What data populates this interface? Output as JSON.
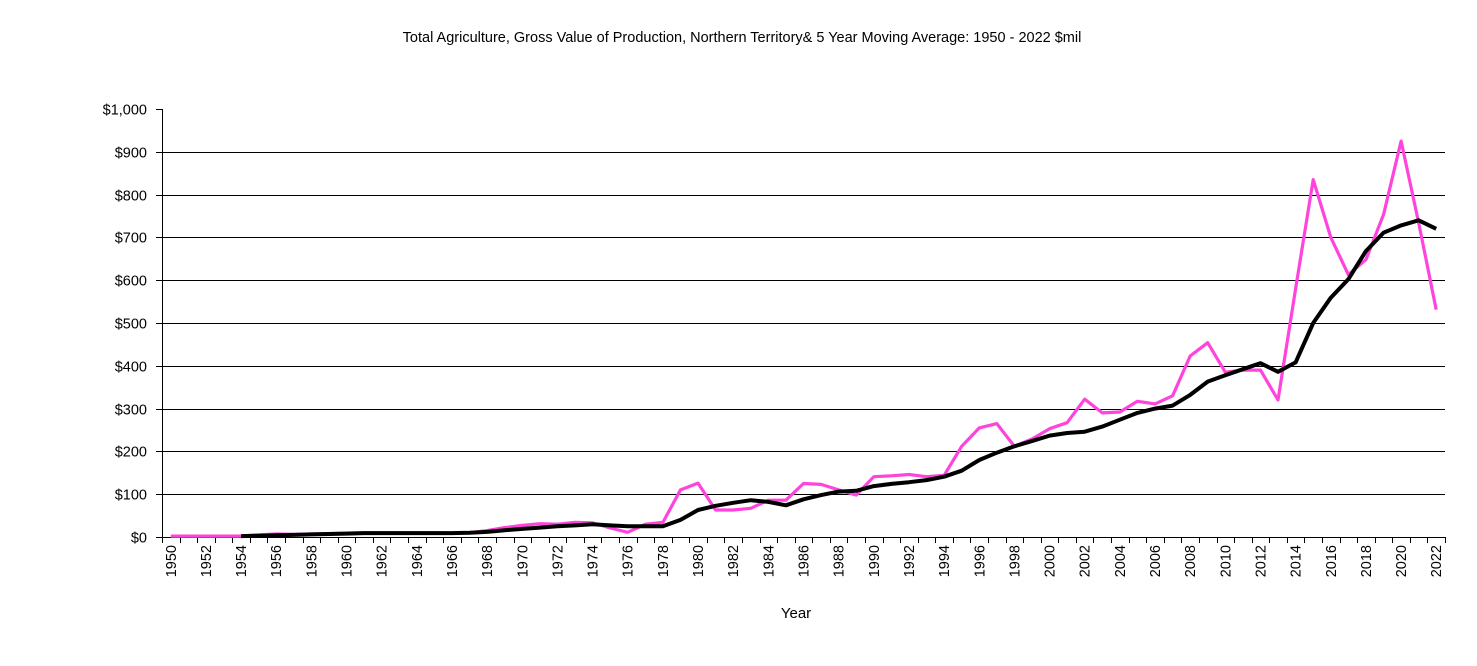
{
  "chart_data": {
    "type": "line",
    "title": "Total Agriculture, Gross Value of Production,  Northern Territory& 5 Year Moving Average: 1950 - 2022 $mil",
    "xlabel": "Year",
    "ylabel": "",
    "ylim": [
      0,
      1000
    ],
    "y_ticks": [
      0,
      100,
      200,
      300,
      400,
      500,
      600,
      700,
      800,
      900,
      1000
    ],
    "y_tick_labels": [
      "$0",
      "$100",
      "$200",
      "$300",
      "$400",
      "$500",
      "$600",
      "$700",
      "$800",
      "$900",
      "$1,000"
    ],
    "grid": true,
    "x": [
      1950,
      1951,
      1952,
      1953,
      1954,
      1955,
      1956,
      1957,
      1958,
      1959,
      1960,
      1961,
      1962,
      1963,
      1964,
      1965,
      1966,
      1967,
      1968,
      1969,
      1970,
      1971,
      1972,
      1973,
      1974,
      1975,
      1976,
      1977,
      1978,
      1979,
      1980,
      1981,
      1982,
      1983,
      1984,
      1985,
      1986,
      1987,
      1988,
      1989,
      1990,
      1991,
      1992,
      1993,
      1994,
      1995,
      1996,
      1997,
      1998,
      1999,
      2000,
      2001,
      2002,
      2003,
      2004,
      2005,
      2006,
      2007,
      2008,
      2009,
      2010,
      2011,
      2012,
      2013,
      2014,
      2015,
      2016,
      2017,
      2018,
      2019,
      2020,
      2021,
      2022
    ],
    "x_tick_labels": [
      "1950",
      "1952",
      "1954",
      "1956",
      "1958",
      "1960",
      "1962",
      "1964",
      "1966",
      "1968",
      "1970",
      "1972",
      "1974",
      "1976",
      "1978",
      "1980",
      "1982",
      "1984",
      "1986",
      "1988",
      "1990",
      "1992",
      "1994",
      "1996",
      "1998",
      "2000",
      "2002",
      "2004",
      "2006",
      "2008",
      "2010",
      "2012",
      "2014",
      "2016",
      "2018",
      "2020",
      "2022"
    ],
    "series": [
      {
        "name": "Gross Value of Production",
        "color": "#FF44DD",
        "values": [
          2,
          2,
          2,
          2,
          2,
          5,
          7,
          6,
          7,
          8,
          9,
          10,
          10,
          10,
          10,
          10,
          9,
          10,
          15,
          22,
          27,
          31,
          30,
          34,
          33,
          21,
          11,
          30,
          34,
          110,
          126,
          63,
          63,
          67,
          86,
          86,
          125,
          123,
          110,
          98,
          141,
          143,
          146,
          141,
          144,
          212,
          255,
          265,
          212,
          229,
          253,
          267,
          322,
          290,
          292,
          317,
          311,
          330,
          423,
          454,
          385,
          390,
          390,
          320,
          580,
          835,
          700,
          613,
          648,
          753,
          925,
          735,
          531
        ]
      },
      {
        "name": "5 Year Moving Average",
        "color": "#000000",
        "values": [
          null,
          null,
          null,
          null,
          2,
          3,
          4,
          5,
          6,
          7,
          8,
          9,
          9,
          9,
          9,
          9,
          9,
          10,
          12,
          16,
          19,
          22,
          25,
          27,
          30,
          27,
          25,
          25,
          25,
          40,
          63,
          73,
          80,
          86,
          82,
          74,
          88,
          98,
          106,
          108,
          119,
          124,
          128,
          133,
          141,
          155,
          180,
          197,
          212,
          224,
          237,
          243,
          246,
          258,
          274,
          290,
          300,
          307,
          332,
          363,
          378,
          392,
          406,
          386,
          408,
          500,
          559,
          602,
          668,
          711,
          728,
          740,
          720
        ]
      }
    ]
  }
}
